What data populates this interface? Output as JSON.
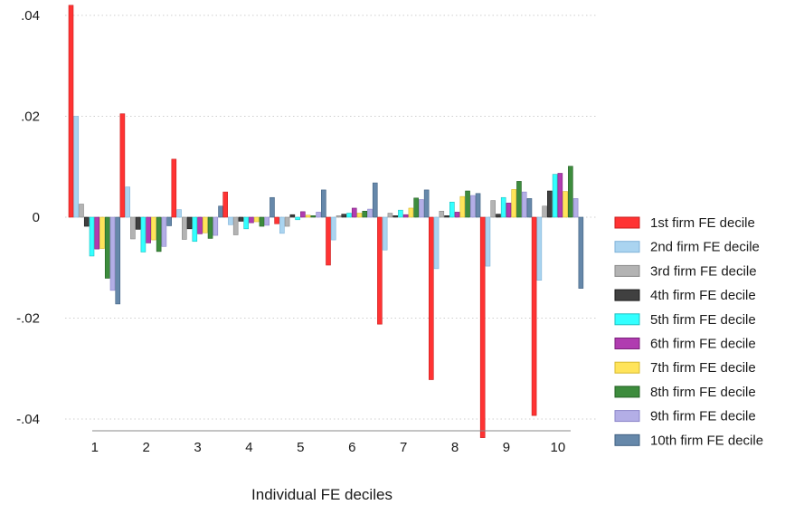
{
  "chart_data": {
    "type": "bar",
    "title": "",
    "xlabel": "Individual FE deciles",
    "ylabel": "",
    "ylim": [
      -0.047,
      0.042
    ],
    "yticks": [
      0.04,
      0.02,
      0,
      -0.02,
      -0.04
    ],
    "ytick_labels": [
      ".04",
      ".02",
      "0",
      "-.02",
      "-.04"
    ],
    "grid": "horizontal dotted",
    "legend_position": "right",
    "categories": [
      "1",
      "2",
      "3",
      "4",
      "5",
      "6",
      "7",
      "8",
      "9",
      "10"
    ],
    "series": [
      {
        "name": "1st firm FE decile",
        "color": "#ff3333",
        "edge": "#c81e1e",
        "values": [
          0.042,
          0.0205,
          0.0115,
          0.005,
          -0.0013,
          -0.0095,
          -0.0212,
          -0.0322,
          -0.0437,
          -0.0393
        ]
      },
      {
        "name": "2nd firm FE decile",
        "color": "#aad4f0",
        "edge": "#7fb2d8",
        "values": [
          0.02,
          0.006,
          0.0015,
          -0.0015,
          -0.0032,
          -0.0045,
          -0.0065,
          -0.0102,
          -0.0097,
          -0.0125
        ]
      },
      {
        "name": "3rd firm FE decile",
        "color": "#b3b3b3",
        "edge": "#888888",
        "values": [
          0.0026,
          -0.0043,
          -0.0044,
          -0.0035,
          -0.0018,
          0.0003,
          0.0008,
          0.0012,
          0.0033,
          0.0022
        ]
      },
      {
        "name": "4th firm FE decile",
        "color": "#404040",
        "edge": "#1a1a1a",
        "values": [
          -0.0018,
          -0.0024,
          -0.0023,
          -0.0008,
          0.0005,
          0.0006,
          0.0003,
          0.0003,
          0.0006,
          0.0052
        ]
      },
      {
        "name": "5th firm FE decile",
        "color": "#33ffff",
        "edge": "#1fbfbf",
        "values": [
          -0.0077,
          -0.0069,
          -0.0048,
          -0.0023,
          -0.0005,
          0.0008,
          0.0014,
          0.003,
          0.0039,
          0.0085
        ]
      },
      {
        "name": "6th firm FE decile",
        "color": "#b03cb0",
        "edge": "#7a1f7a",
        "values": [
          -0.0063,
          -0.0051,
          -0.0033,
          -0.0011,
          0.0011,
          0.0018,
          0.0005,
          0.001,
          0.0028,
          0.0087
        ]
      },
      {
        "name": "7th firm FE decile",
        "color": "#ffe45a",
        "edge": "#d6b830",
        "values": [
          -0.0062,
          -0.0045,
          -0.0031,
          -0.0009,
          0.0004,
          0.0008,
          0.0018,
          0.0041,
          0.0055,
          0.0051
        ]
      },
      {
        "name": "8th firm FE decile",
        "color": "#3d8c3d",
        "edge": "#236023",
        "values": [
          -0.0121,
          -0.0068,
          -0.0042,
          -0.0018,
          0.0003,
          0.0012,
          0.0038,
          0.0052,
          0.0071,
          0.0101
        ]
      },
      {
        "name": "9th firm FE decile",
        "color": "#b3aee6",
        "edge": "#8a84c8",
        "values": [
          -0.0145,
          -0.0058,
          -0.0036,
          -0.0016,
          0.001,
          0.0016,
          0.0035,
          0.0043,
          0.005,
          0.0037
        ]
      },
      {
        "name": "10th firm FE decile",
        "color": "#6688aa",
        "edge": "#3e5f80",
        "values": [
          -0.0172,
          -0.0017,
          0.0022,
          0.0039,
          0.0054,
          0.0068,
          0.0054,
          0.0047,
          0.0037,
          -0.0141
        ]
      }
    ]
  }
}
